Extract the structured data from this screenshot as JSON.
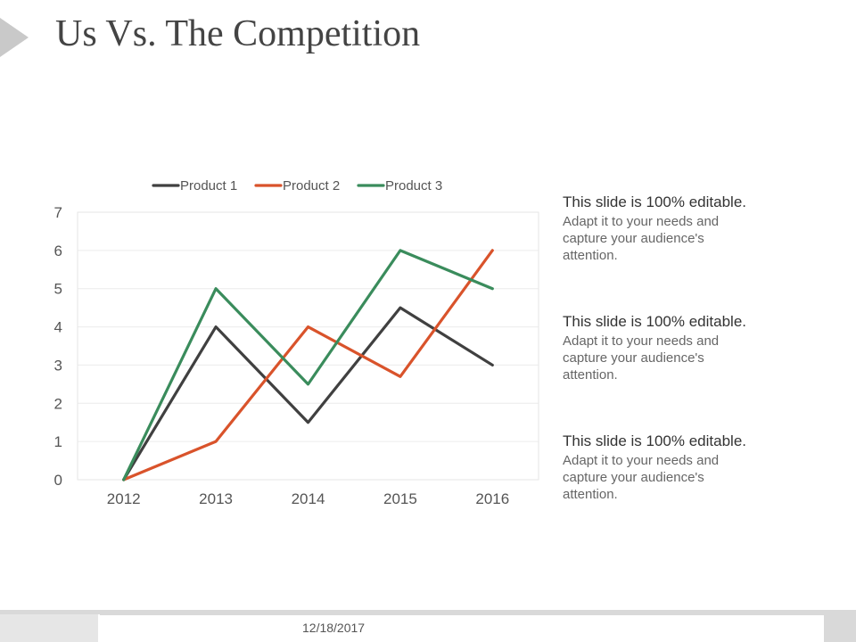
{
  "slide": {
    "title": "Us Vs. The Competition",
    "footer_date": "12/18/2017"
  },
  "text_blocks": [
    {
      "heading": "This slide is 100% editable.",
      "body": "Adapt it to your needs and capture your audience's attention."
    },
    {
      "heading": "This slide is 100% editable.",
      "body": "Adapt it to your needs and capture your audience's attention."
    },
    {
      "heading": "This slide is 100% editable.",
      "body": "Adapt it to your needs and capture your audience's attention."
    }
  ],
  "chart_data": {
    "type": "line",
    "title": "",
    "xlabel": "",
    "ylabel": "",
    "categories": [
      "2012",
      "2013",
      "2014",
      "2015",
      "2016"
    ],
    "ylim": [
      0,
      7
    ],
    "yticks": [
      0,
      1,
      2,
      3,
      4,
      5,
      6,
      7
    ],
    "grid": true,
    "legend_position": "top",
    "series": [
      {
        "name": "Product 1",
        "color": "#404040",
        "values": [
          0,
          4,
          1.5,
          4.5,
          3
        ]
      },
      {
        "name": "Product 2",
        "color": "#d9532b",
        "values": [
          0,
          1,
          4,
          2.7,
          6
        ]
      },
      {
        "name": "Product 3",
        "color": "#3a8c5c",
        "values": [
          0,
          5,
          2.5,
          6,
          5
        ]
      }
    ]
  }
}
